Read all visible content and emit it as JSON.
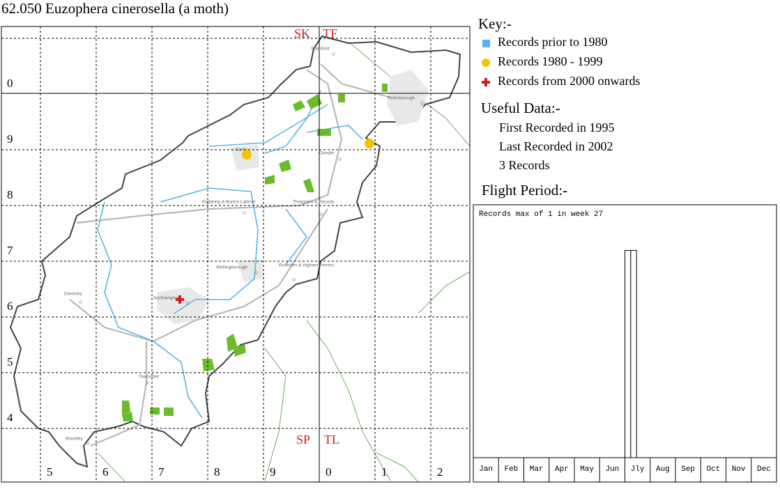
{
  "title": "62.050 Euzophera cinerosella (a moth)",
  "map": {
    "grid_labels_left": [
      "0",
      "9",
      "8",
      "7",
      "6",
      "5",
      "4"
    ],
    "grid_labels_bottom": [
      "5",
      "6",
      "7",
      "8",
      "9",
      "0",
      "1",
      "2"
    ],
    "square_labels": [
      "SK",
      "TF",
      "SP",
      "TL"
    ],
    "places": [
      "Stamford",
      "Peterborough",
      "Corby",
      "Oundle",
      "Kettering & Burton Latimer",
      "Thrapston & Raunds",
      "Wellingborough",
      "Rushden & Higham Ferrers",
      "Daventry",
      "Northampton",
      "Towcester",
      "Brackley"
    ]
  },
  "key": {
    "title": "Key:-",
    "items": [
      "Records prior to 1980",
      "Records 1980 - 1999",
      "Records from 2000 onwards"
    ]
  },
  "useful_data": {
    "title": "Useful Data:-",
    "lines": [
      "First Recorded in 1995",
      "Last Recorded in 2002",
      "3 Records"
    ]
  },
  "chart_data": {
    "type": "bar",
    "title": "Flight Period:-",
    "subtitle": "Records max of 1 in week 27",
    "categories": [
      "Jan",
      "Feb",
      "Mar",
      "Apr",
      "May",
      "Jun",
      "Jly",
      "Aug",
      "Sep",
      "Oct",
      "Nov",
      "Dec"
    ],
    "x": [
      27,
      28
    ],
    "values": [
      1,
      1
    ],
    "xlim": [
      0,
      52
    ],
    "ylim": [
      0,
      1.2
    ],
    "color": "#ffffff"
  }
}
